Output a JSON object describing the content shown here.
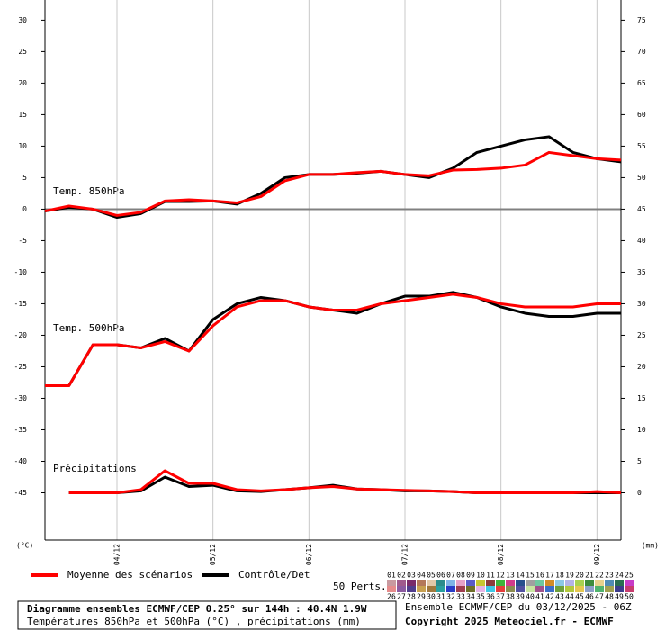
{
  "chart_data": {
    "type": "line",
    "title": "Diagramme ensembles ECMWF/CEP 0.25° sur 144h : 40.4N 1.9W",
    "subtitle": "Températures 850hPa et 500hPa (°C) , précipitations (mm)",
    "run_info": "Ensemble ECMWF/CEP du 03/12/2025 - 06Z",
    "copyright": "Copyright 2025 Meteociel.fr - ECMWF",
    "ylabel": "(°C)",
    "y2label": "(mm)",
    "annotations": [
      "Temp. 850hPa",
      "Temp. 500hPa",
      "Précipitations"
    ],
    "categories": [
      null,
      null,
      null,
      "04/12",
      null,
      null,
      null,
      "05/12",
      null,
      null,
      null,
      "06/12",
      null,
      null,
      null,
      "07/12",
      null,
      null,
      null,
      "08/12",
      null,
      null,
      null,
      "09/12",
      null
    ],
    "ylim": [
      -52.5,
      33.2
    ],
    "yticks": [
      30,
      25,
      20,
      15,
      10,
      5,
      0,
      -5,
      -10,
      -15,
      -20,
      -25,
      -30,
      -35,
      -40,
      -45
    ],
    "y2lim": [
      -7.5,
      78.2
    ],
    "y2ticks": [
      75,
      70,
      65,
      60,
      55,
      50,
      45,
      40,
      35,
      30,
      25,
      20,
      15,
      10,
      5,
      0
    ],
    "grid": "x",
    "legend": [
      {
        "name": "Moyenne des scénarios",
        "color": "#ff0000"
      },
      {
        "name": "Contrôle/Det",
        "color": "#000000"
      }
    ],
    "series": [
      {
        "color": "#000000",
        "values": [
          -0.3,
          0.3,
          0,
          -1.3,
          -0.7,
          1.2,
          1.2,
          1.3,
          0.8,
          2.5,
          5,
          5.5,
          5.5,
          5.7,
          6,
          5.5,
          5,
          6.5,
          9,
          10,
          11,
          11.5,
          9,
          8,
          7.5
        ]
      },
      {
        "color": "#ff0000",
        "values": [
          -0.3,
          0.5,
          0,
          -1,
          -0.5,
          1.3,
          1.5,
          1.3,
          1,
          2,
          4.5,
          5.5,
          5.5,
          5.8,
          6,
          5.5,
          5.3,
          6.2,
          6.3,
          6.5,
          7,
          9,
          8.5,
          8,
          7.8
        ]
      },
      {
        "color": "#000000",
        "values": [
          -28,
          -28,
          -21.5,
          -21.5,
          -22,
          -20.5,
          -22.5,
          -17.5,
          -15,
          -14,
          -14.5,
          -15.5,
          -16,
          -16.5,
          -15,
          -13.8,
          -13.8,
          -13.2,
          -14,
          -15.5,
          -16.5,
          -17,
          -17,
          -16.5,
          -16.5
        ]
      },
      {
        "color": "#ff0000",
        "values": [
          -28,
          -28,
          -21.5,
          -21.5,
          -22,
          -21,
          -22.5,
          -18.5,
          -15.5,
          -14.5,
          -14.5,
          -15.5,
          -16,
          -16,
          -15,
          -14.5,
          -14,
          -13.5,
          -14,
          -15,
          -15.5,
          -15.5,
          -15.5,
          -15,
          -15
        ]
      },
      {
        "color": "#000000",
        "axis": "y2",
        "values": [
          null,
          0,
          0,
          0,
          0.3,
          2.5,
          1,
          1.2,
          0.3,
          0.2,
          0.5,
          0.8,
          1.2,
          0.6,
          0.5,
          0.3,
          0.3,
          0.2,
          0,
          0,
          0,
          0,
          0,
          0,
          0
        ]
      },
      {
        "color": "#ff0000",
        "axis": "y2",
        "values": [
          null,
          0,
          0,
          0,
          0.5,
          3.5,
          1.5,
          1.5,
          0.5,
          0.3,
          0.5,
          0.8,
          1,
          0.6,
          0.5,
          0.4,
          0.3,
          0.2,
          0,
          0,
          0,
          0,
          0,
          0.2,
          0
        ]
      }
    ],
    "perts_label": "50 Perts.",
    "perts": [
      {
        "name": "01",
        "color": "#c89aa0"
      },
      {
        "name": "02",
        "color": "#a05a8c"
      },
      {
        "name": "03",
        "color": "#7a2a6a"
      },
      {
        "name": "04",
        "color": "#b4785a"
      },
      {
        "name": "05",
        "color": "#e2c8a8"
      },
      {
        "name": "06",
        "color": "#2a8c8c"
      },
      {
        "name": "07",
        "color": "#7fb4e6"
      },
      {
        "name": "08",
        "color": "#e6a0c8"
      },
      {
        "name": "09",
        "color": "#5a5ac8"
      },
      {
        "name": "10",
        "color": "#c8c832"
      },
      {
        "name": "11",
        "color": "#8c3c3c"
      },
      {
        "name": "12",
        "color": "#3cb43c"
      },
      {
        "name": "13",
        "color": "#d23c8c"
      },
      {
        "name": "14",
        "color": "#28508c"
      },
      {
        "name": "15",
        "color": "#a0a0a0"
      },
      {
        "name": "16",
        "color": "#6ec8a0"
      },
      {
        "name": "17",
        "color": "#d28c28"
      },
      {
        "name": "18",
        "color": "#8cc8e6"
      },
      {
        "name": "19",
        "color": "#b4b4e6"
      },
      {
        "name": "20",
        "color": "#a8d250"
      },
      {
        "name": "21",
        "color": "#3c8c3c"
      },
      {
        "name": "22",
        "color": "#e6d28c"
      },
      {
        "name": "23",
        "color": "#508cb4"
      },
      {
        "name": "24",
        "color": "#2a6e50"
      },
      {
        "name": "25",
        "color": "#c83cc8"
      },
      {
        "name": "26",
        "color": "#e68c8c"
      },
      {
        "name": "27",
        "color": "#8c5aa0"
      },
      {
        "name": "28",
        "color": "#503c8c"
      },
      {
        "name": "29",
        "color": "#c8a050"
      },
      {
        "name": "30",
        "color": "#a0783c"
      },
      {
        "name": "31",
        "color": "#28a0a0"
      },
      {
        "name": "32",
        "color": "#283cc8"
      },
      {
        "name": "33",
        "color": "#a03c50"
      },
      {
        "name": "34",
        "color": "#6e6e28"
      },
      {
        "name": "35",
        "color": "#e6b4e6"
      },
      {
        "name": "36",
        "color": "#3cc8e6"
      },
      {
        "name": "37",
        "color": "#e63c3c"
      },
      {
        "name": "38",
        "color": "#8c8c50"
      },
      {
        "name": "39",
        "color": "#5050a0"
      },
      {
        "name": "40",
        "color": "#c8e6a0"
      },
      {
        "name": "41",
        "color": "#a0508c"
      },
      {
        "name": "42",
        "color": "#3c6ec8"
      },
      {
        "name": "43",
        "color": "#6ea03c"
      },
      {
        "name": "44",
        "color": "#b4c83c"
      },
      {
        "name": "45",
        "color": "#e6c850"
      },
      {
        "name": "46",
        "color": "#8ca0c8"
      },
      {
        "name": "47",
        "color": "#50b46e"
      },
      {
        "name": "48",
        "color": "#a0a050"
      },
      {
        "name": "49",
        "color": "#3c3c8c"
      },
      {
        "name": "50",
        "color": "#c83c6e"
      }
    ]
  }
}
